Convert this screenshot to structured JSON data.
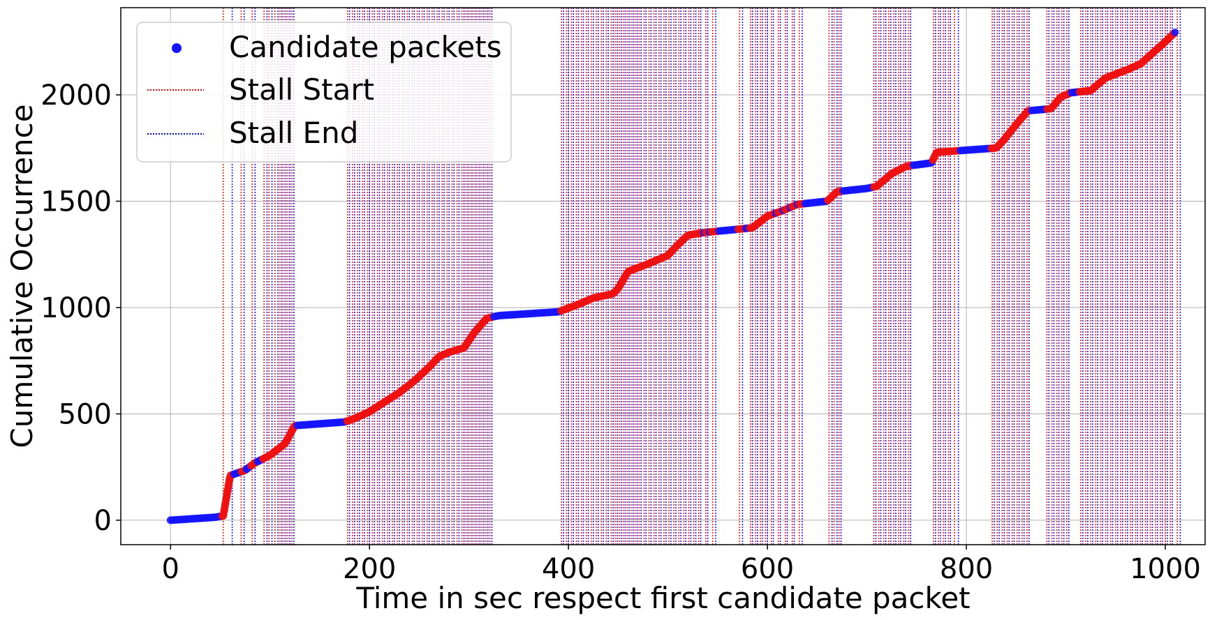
{
  "chart_data": {
    "type": "scatter",
    "title": "",
    "xlabel": "Time in sec respect first candidate packet",
    "ylabel": "Cumulative Occurrence",
    "xlim": [
      -50,
      1040
    ],
    "ylim": [
      -115,
      2410
    ],
    "xticks": [
      0,
      200,
      400,
      600,
      800,
      1000
    ],
    "yticks": [
      0,
      500,
      1000,
      1500,
      2000
    ],
    "grid": true,
    "legend_position": "top-left",
    "colors": {
      "points": "#1414ff",
      "stall_points": "#ee1111",
      "stall_start": "#ff0000",
      "stall_end": "#0000ff"
    },
    "legend": {
      "points": "Candidate packets",
      "stall_start": "Stall Start",
      "stall_end": "Stall End"
    },
    "series": [
      {
        "name": "Candidate packets",
        "kind": "scatter",
        "curve": [
          [
            0,
            0
          ],
          [
            45,
            14
          ],
          [
            53,
            20
          ],
          [
            60,
            210
          ],
          [
            75,
            235
          ],
          [
            85,
            270
          ],
          [
            100,
            305
          ],
          [
            115,
            360
          ],
          [
            125,
            445
          ],
          [
            175,
            462
          ],
          [
            185,
            478
          ],
          [
            200,
            510
          ],
          [
            215,
            555
          ],
          [
            230,
            600
          ],
          [
            245,
            655
          ],
          [
            260,
            720
          ],
          [
            270,
            770
          ],
          [
            280,
            790
          ],
          [
            295,
            810
          ],
          [
            305,
            880
          ],
          [
            318,
            950
          ],
          [
            330,
            962
          ],
          [
            390,
            980
          ],
          [
            410,
            1015
          ],
          [
            425,
            1045
          ],
          [
            445,
            1065
          ],
          [
            450,
            1090
          ],
          [
            460,
            1170
          ],
          [
            480,
            1205
          ],
          [
            500,
            1245
          ],
          [
            510,
            1295
          ],
          [
            520,
            1340
          ],
          [
            535,
            1352
          ],
          [
            585,
            1375
          ],
          [
            600,
            1430
          ],
          [
            615,
            1455
          ],
          [
            630,
            1485
          ],
          [
            660,
            1500
          ],
          [
            670,
            1545
          ],
          [
            700,
            1560
          ],
          [
            710,
            1570
          ],
          [
            725,
            1630
          ],
          [
            740,
            1665
          ],
          [
            765,
            1680
          ],
          [
            770,
            1730
          ],
          [
            830,
            1750
          ],
          [
            838,
            1790
          ],
          [
            850,
            1860
          ],
          [
            862,
            1925
          ],
          [
            885,
            1935
          ],
          [
            895,
            1990
          ],
          [
            905,
            2010
          ],
          [
            925,
            2020
          ],
          [
            940,
            2080
          ],
          [
            960,
            2115
          ],
          [
            975,
            2145
          ],
          [
            1000,
            2250
          ],
          [
            1010,
            2295
          ]
        ]
      },
      {
        "name": "Stall Start",
        "kind": "vline",
        "values": [
          53,
          71,
          82,
          94,
          99,
          105,
          110,
          114,
          118,
          122,
          178,
          183,
          188,
          193,
          198,
          203,
          208,
          213,
          218,
          223,
          228,
          233,
          238,
          243,
          248,
          253,
          258,
          263,
          268,
          273,
          278,
          283,
          288,
          293,
          297,
          301,
          305,
          309,
          313,
          317,
          321,
          393,
          398,
          403,
          408,
          413,
          418,
          423,
          428,
          433,
          438,
          443,
          447,
          451,
          455,
          459,
          463,
          467,
          471,
          476,
          481,
          486,
          491,
          496,
          501,
          506,
          511,
          516,
          521,
          526,
          531,
          538,
          545,
          572,
          583,
          588,
          593,
          598,
          604,
          611,
          618,
          625,
          632,
          662,
          667,
          672,
          707,
          712,
          717,
          722,
          727,
          732,
          737,
          742,
          767,
          772,
          777,
          782,
          788,
          826,
          831,
          836,
          841,
          846,
          851,
          856,
          861,
          881,
          886,
          891,
          896,
          901,
          915,
          920,
          925,
          930,
          935,
          940,
          945,
          950,
          955,
          960,
          965,
          970,
          975,
          980,
          985,
          990,
          995,
          1000,
          1005,
          1012
        ]
      },
      {
        "name": "Stall End",
        "kind": "vline",
        "values": [
          62,
          74,
          85,
          97,
          102,
          108,
          112,
          116,
          120,
          124,
          180,
          185,
          190,
          195,
          200,
          205,
          210,
          215,
          220,
          225,
          230,
          235,
          240,
          245,
          250,
          255,
          260,
          265,
          270,
          275,
          280,
          285,
          290,
          295,
          299,
          303,
          307,
          311,
          315,
          319,
          323,
          395,
          400,
          405,
          410,
          415,
          420,
          425,
          430,
          435,
          440,
          445,
          449,
          453,
          457,
          461,
          465,
          469,
          473,
          478,
          483,
          488,
          493,
          498,
          503,
          508,
          513,
          518,
          523,
          528,
          533,
          540,
          548,
          575,
          585,
          590,
          595,
          600,
          606,
          613,
          620,
          627,
          635,
          665,
          670,
          674,
          709,
          714,
          719,
          724,
          729,
          734,
          739,
          744,
          769,
          774,
          779,
          784,
          792,
          828,
          833,
          838,
          843,
          848,
          853,
          858,
          863,
          883,
          888,
          893,
          898,
          903,
          917,
          922,
          927,
          932,
          937,
          942,
          947,
          952,
          957,
          962,
          967,
          972,
          977,
          982,
          987,
          992,
          997,
          1002,
          1007,
          1015
        ]
      }
    ]
  }
}
